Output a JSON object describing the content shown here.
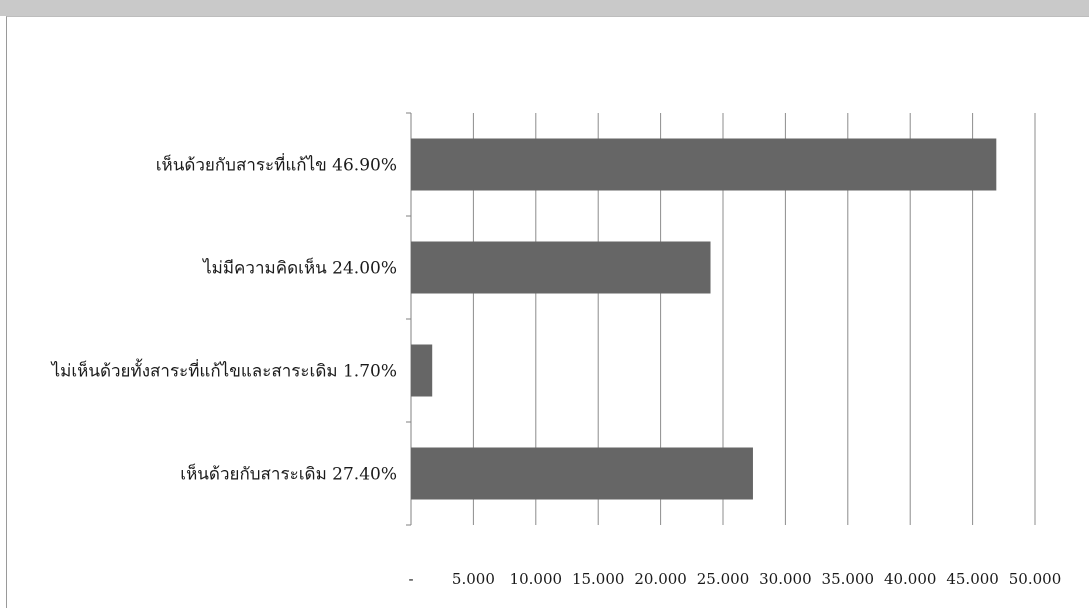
{
  "chart_data": {
    "type": "bar",
    "orientation": "horizontal",
    "categories": [
      "เห็นด้วยกับสาระเดิม 27.40%",
      "ไม่เห็นด้วยทั้งสาระที่แก้ไขและสาระเดิม 1.70%",
      "ไม่มีความคิดเห็น 24.00%",
      "เห็นด้วยกับสาระที่แก้ไข 46.90%"
    ],
    "values": [
      27.4,
      1.7,
      24.0,
      46.9
    ],
    "xlim": [
      0,
      50
    ],
    "x_ticks": [
      0,
      5,
      10,
      15,
      20,
      25,
      30,
      35,
      40,
      45,
      50
    ],
    "x_tick_labels": [
      "-",
      "5.000",
      "10.000",
      "15.000",
      "20.000",
      "25.000",
      "30.000",
      "35.000",
      "40.000",
      "45.000",
      "50.000"
    ],
    "grid": true,
    "legend": "none",
    "title": "",
    "xlabel": "",
    "ylabel": "",
    "colors": {
      "bar": "#666666",
      "grid": "#8c8c8c",
      "axis": "#808080",
      "text": "#1a1a1a"
    }
  }
}
